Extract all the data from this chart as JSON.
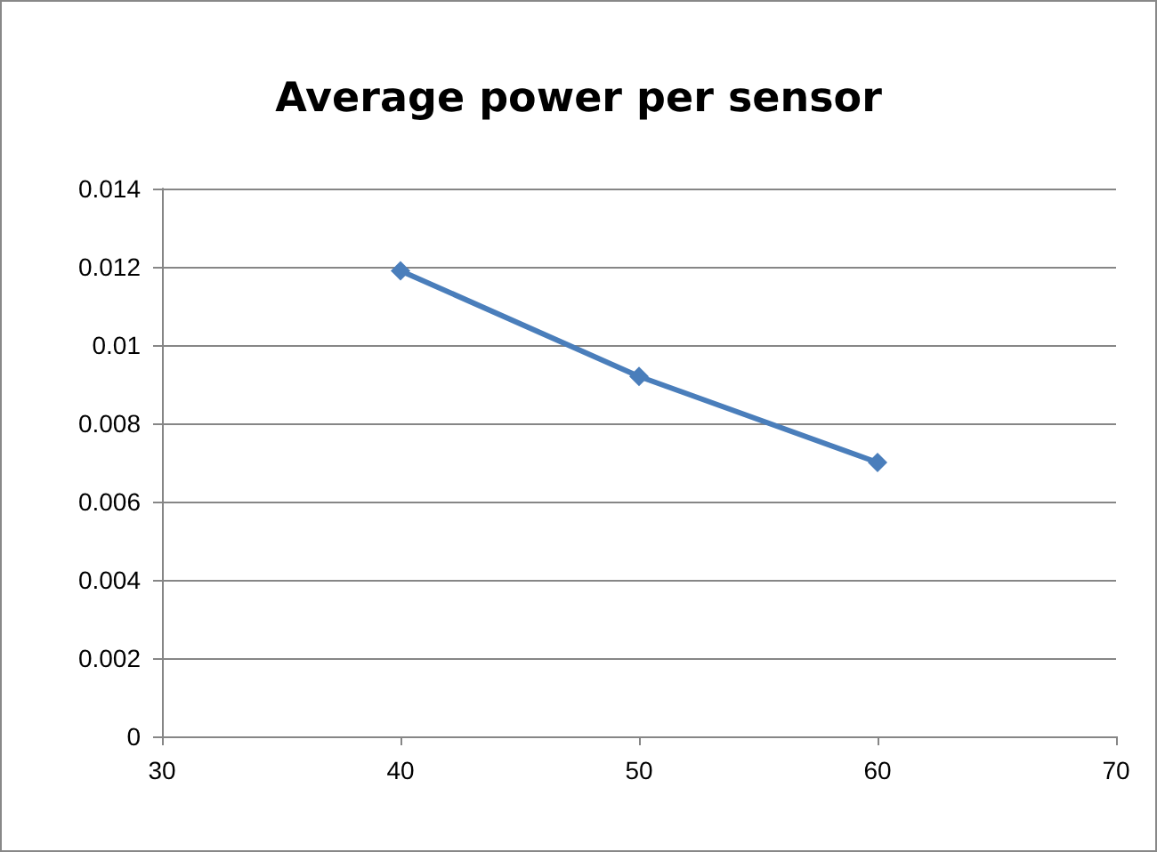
{
  "chart_data": {
    "type": "line",
    "title": "Average power per sensor",
    "x": [
      40,
      50,
      60
    ],
    "series": [
      {
        "color": "#4a7ebb",
        "values": [
          0.0119,
          0.0092,
          0.007
        ]
      }
    ],
    "xlim": [
      30,
      70
    ],
    "xticks": [
      30,
      40,
      50,
      60,
      70
    ],
    "ylim": [
      0,
      0.014
    ],
    "yticks": [
      0,
      0.002,
      0.004,
      0.006,
      0.008,
      0.01,
      0.012,
      0.014
    ],
    "grid": "y",
    "marker": "diamond",
    "line_style": "solid"
  }
}
